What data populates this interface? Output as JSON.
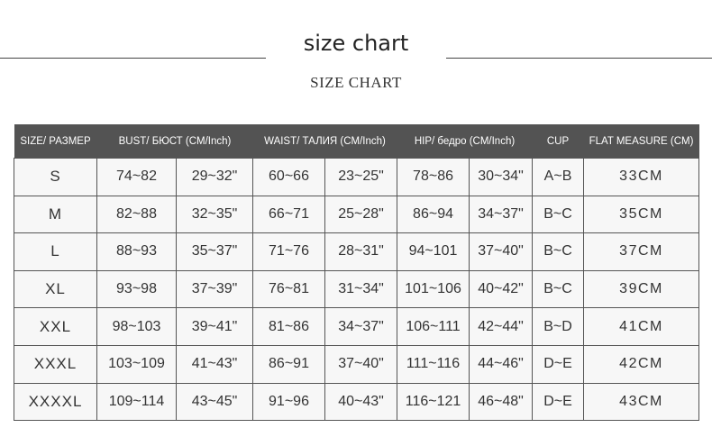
{
  "title": "size chart",
  "subtitle": "SIZE CHART",
  "headers": [
    "SIZE/ РАЗМЕР",
    "BUST/ БЮСТ (CM/Inch)",
    "WAIST/ ТАЛИЯ (CM/Inch)",
    "HIP/ бедро (CM/Inch)",
    "CUP",
    "FLAT MEASURE (CM)"
  ],
  "rows": [
    [
      "S",
      "74~82",
      "29~32\"",
      "60~66",
      "23~25\"",
      "78~86",
      "30~34\"",
      "A~B",
      "33CM"
    ],
    [
      "M",
      "82~88",
      "32~35\"",
      "66~71",
      "25~28\"",
      "86~94",
      "34~37\"",
      "B~C",
      "35CM"
    ],
    [
      "L",
      "88~93",
      "35~37\"",
      "71~76",
      "28~31\"",
      "94~101",
      "37~40\"",
      "B~C",
      "37CM"
    ],
    [
      "XL",
      "93~98",
      "37~39\"",
      "76~81",
      "31~34\"",
      "101~106",
      "40~42\"",
      "B~C",
      "39CM"
    ],
    [
      "XXL",
      "98~103",
      "39~41\"",
      "81~86",
      "34~37\"",
      "106~111",
      "42~44\"",
      "B~D",
      "41CM"
    ],
    [
      "XXXL",
      "103~109",
      "41~43\"",
      "86~91",
      "37~40\"",
      "111~116",
      "44~46\"",
      "D~E",
      "42CM"
    ],
    [
      "XXXXL",
      "109~114",
      "43~45\"",
      "91~96",
      "40~43\"",
      "116~121",
      "46~48\"",
      "D~E",
      "43CM"
    ]
  ]
}
